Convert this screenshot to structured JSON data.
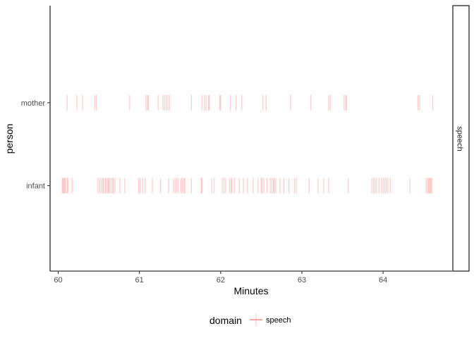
{
  "chart_data": {
    "type": "scatter",
    "geom": "vertical-line-ticks",
    "xlabel": "Minutes",
    "ylabel": "person",
    "xlim": [
      59.9,
      64.85
    ],
    "x_ticks": [
      60,
      61,
      62,
      63,
      64
    ],
    "categories": [
      "infant",
      "mother"
    ],
    "facet_strip": "speech",
    "grid": false,
    "legend": {
      "title": "domain",
      "position": "bottom",
      "entries": [
        {
          "label": "speech",
          "color": "#F8766D"
        }
      ]
    },
    "colors": {
      "speech": "#F8766D"
    },
    "series": [
      {
        "name": "speech",
        "points": [
          {
            "person": "mother",
            "x": [
              60.11,
              60.23,
              60.3,
              60.45,
              60.47,
              60.88,
              61.08,
              61.1,
              61.11,
              61.23,
              61.29,
              61.31,
              61.33,
              61.35,
              61.37,
              61.64,
              61.77,
              61.8,
              61.82,
              61.85,
              61.86,
              61.99,
              62.0,
              62.12,
              62.19,
              62.26,
              62.52,
              62.56,
              62.86,
              63.11,
              63.33,
              63.35,
              63.52,
              63.54,
              63.55,
              64.43,
              64.45,
              64.61
            ]
          },
          {
            "person": "infant",
            "x": [
              60.05,
              60.06,
              60.07,
              60.08,
              60.09,
              60.11,
              60.12,
              60.17,
              60.49,
              60.51,
              60.53,
              60.55,
              60.56,
              60.58,
              60.59,
              60.61,
              60.62,
              60.63,
              60.65,
              60.67,
              60.68,
              60.7,
              60.76,
              60.82,
              60.99,
              61.01,
              61.04,
              61.07,
              61.16,
              61.26,
              61.36,
              61.42,
              61.44,
              61.46,
              61.48,
              61.51,
              61.53,
              61.55,
              61.56,
              61.64,
              61.76,
              61.77,
              61.89,
              61.92,
              62.02,
              62.04,
              62.06,
              62.11,
              62.13,
              62.14,
              62.17,
              62.23,
              62.28,
              62.33,
              62.4,
              62.46,
              62.5,
              62.51,
              62.53,
              62.57,
              62.61,
              62.63,
              62.65,
              62.66,
              62.68,
              62.73,
              62.78,
              62.84,
              62.91,
              62.93,
              63.09,
              63.2,
              63.27,
              63.33,
              63.57,
              63.86,
              63.88,
              63.9,
              63.92,
              63.95,
              63.98,
              64.0,
              64.02,
              64.04,
              64.06,
              64.09,
              64.33,
              64.53,
              64.55,
              64.56,
              64.57,
              64.58,
              64.59,
              64.6
            ]
          }
        ]
      }
    ]
  }
}
